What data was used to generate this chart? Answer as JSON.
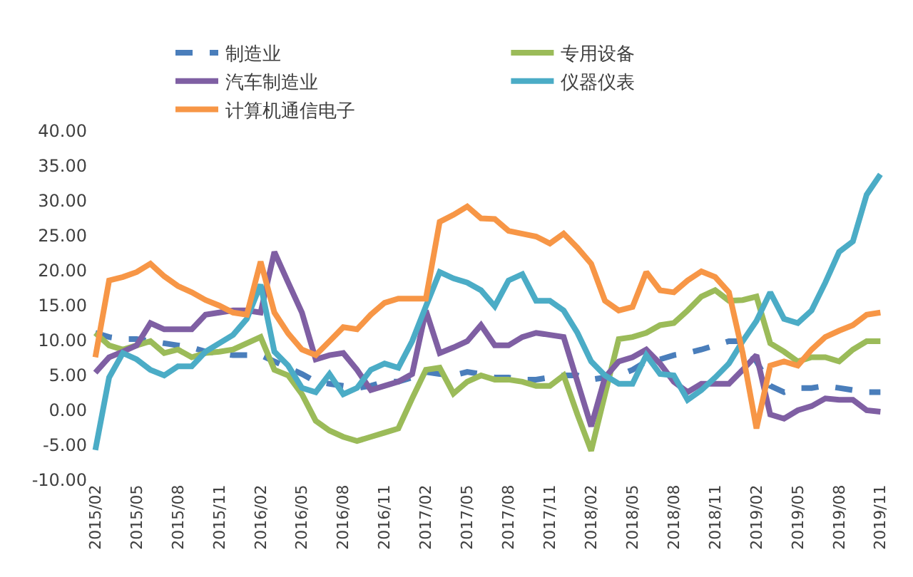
{
  "chart_data": {
    "type": "line",
    "categories": [
      "2015/02",
      null,
      null,
      "2015/05",
      null,
      null,
      "2015/08",
      null,
      null,
      "2015/11",
      null,
      null,
      "2016/02",
      null,
      null,
      "2016/05",
      null,
      null,
      "2016/08",
      null,
      null,
      "2016/11",
      null,
      null,
      "2017/02",
      null,
      null,
      "2017/05",
      null,
      null,
      "2017/08",
      null,
      null,
      "2017/11",
      null,
      null,
      "2018/02",
      null,
      null,
      "2018/05",
      null,
      null,
      "2018/08",
      null,
      null,
      "2018/11",
      null,
      null,
      "2019/02",
      null,
      null,
      "2019/05",
      null,
      null,
      "2019/08",
      null,
      null,
      "2019/11"
    ],
    "ylim": [
      -10,
      40
    ],
    "yticks": [
      {
        "value": -10,
        "label": "-10.00"
      },
      {
        "value": -5,
        "label": "-5.00"
      },
      {
        "value": 0,
        "label": "0.00"
      },
      {
        "value": 5,
        "label": "5.00"
      },
      {
        "value": 10,
        "label": "10.00"
      },
      {
        "value": 15,
        "label": "15.00"
      },
      {
        "value": 20,
        "label": "20.00"
      },
      {
        "value": 25,
        "label": "25.00"
      },
      {
        "value": 30,
        "label": "30.00"
      },
      {
        "value": 35,
        "label": "35.00"
      },
      {
        "value": 40,
        "label": "40.00"
      }
    ],
    "grid": false,
    "legend": "top",
    "marker": "none",
    "series": [
      {
        "name": "制造业",
        "color": "#4a7ebb",
        "line_style": "dashed",
        "values": [
          11.1,
          10.5,
          10.2,
          10.2,
          9.9,
          9.6,
          9.3,
          9,
          8.4,
          8.2,
          7.9,
          7.9,
          7.9,
          7,
          6.1,
          5.2,
          4.1,
          3.8,
          3.5,
          3.2,
          3.5,
          4.1,
          4.1,
          4.7,
          5.5,
          5.2,
          5,
          5.5,
          5.2,
          4.7,
          4.7,
          4.4,
          4.4,
          4.7,
          5,
          5,
          4.4,
          4.7,
          5,
          5.8,
          7,
          7.3,
          7.9,
          8.2,
          8.7,
          9.3,
          9.9,
          9.9,
          7,
          3.5,
          2.6,
          3.2,
          3.2,
          3.5,
          3.2,
          2.9,
          2.6,
          2.6
        ]
      },
      {
        "name": "专用设备",
        "color": "#9bbb59",
        "line_style": "solid",
        "values": [
          11.1,
          9.3,
          8.7,
          9.3,
          9.9,
          8.2,
          8.7,
          7.6,
          8.2,
          8.4,
          8.7,
          9.6,
          10.5,
          5.8,
          5,
          2.3,
          -1.5,
          -2.9,
          -3.8,
          -4.4,
          -3.8,
          -3.2,
          -2.6,
          1.7,
          5.8,
          6.1,
          2.4,
          4.1,
          5,
          4.4,
          4.4,
          4.1,
          3.5,
          3.5,
          5,
          -0.6,
          -5.8,
          2.3,
          10.2,
          10.5,
          11.1,
          12.2,
          12.5,
          14.3,
          16.3,
          17.2,
          15.7,
          15.8,
          16.3,
          9.6,
          8.4,
          7,
          7.6,
          7.6,
          7,
          8.7,
          9.9,
          9.9
        ]
      },
      {
        "name": "汽车制造业",
        "color": "#7f5fa3",
        "line_style": "solid",
        "values": [
          5.4,
          7.6,
          8.4,
          9.3,
          12.5,
          11.6,
          11.6,
          11.6,
          13.7,
          14,
          14.3,
          14.3,
          14,
          22.7,
          18.3,
          14,
          7.3,
          7.9,
          8.2,
          5.8,
          2.9,
          3.5,
          4.1,
          5.2,
          14.3,
          8.2,
          9,
          9.9,
          12.2,
          9.3,
          9.3,
          10.5,
          11.1,
          10.8,
          10.5,
          4.1,
          -2.3,
          4.7,
          7,
          7.6,
          8.7,
          6.7,
          4.1,
          2.6,
          3.8,
          3.8,
          3.8,
          5.8,
          7.9,
          -0.6,
          -1.2,
          0,
          0.6,
          1.7,
          1.5,
          1.5,
          0,
          -0.2
        ]
      },
      {
        "name": "仪器仪表",
        "color": "#4bacc6",
        "line_style": "solid",
        "values": [
          -5.7,
          4.7,
          8.2,
          7.3,
          5.8,
          5,
          6.3,
          6.3,
          8.4,
          9.6,
          10.8,
          13.1,
          18,
          8.4,
          6.4,
          3.2,
          2.6,
          5.2,
          2.3,
          3.2,
          5.8,
          6.7,
          6.1,
          9.9,
          14.9,
          19.8,
          18.9,
          18.3,
          17.2,
          14.9,
          18.6,
          19.5,
          15.7,
          15.7,
          14.3,
          11.1,
          7,
          5,
          3.8,
          3.8,
          7.9,
          5.2,
          5,
          1.5,
          2.9,
          4.7,
          6.7,
          9.9,
          12.8,
          16.9,
          13.1,
          12.5,
          14.3,
          18.3,
          22.7,
          24.2,
          30.9,
          33.8
        ]
      },
      {
        "name": "计算机通信电子",
        "color": "#f79646",
        "line_style": "solid",
        "values": [
          7.6,
          18.6,
          19.1,
          19.8,
          21,
          19.2,
          17.8,
          16.9,
          15.8,
          15,
          14,
          13.7,
          21.3,
          14,
          11,
          8.7,
          7.9,
          9.9,
          11.9,
          11.6,
          13.7,
          15.4,
          16,
          16,
          16,
          27,
          28,
          29.2,
          27.5,
          27.4,
          25.7,
          25.3,
          24.9,
          23.9,
          25.3,
          23.3,
          21,
          15.7,
          14.3,
          14.8,
          19.8,
          17.2,
          16.9,
          18.6,
          19.9,
          19.1,
          16.9,
          8.2,
          -2.6,
          6.4,
          7,
          6.4,
          8.7,
          10.5,
          11.4,
          12.2,
          13.7,
          14
        ]
      }
    ]
  }
}
